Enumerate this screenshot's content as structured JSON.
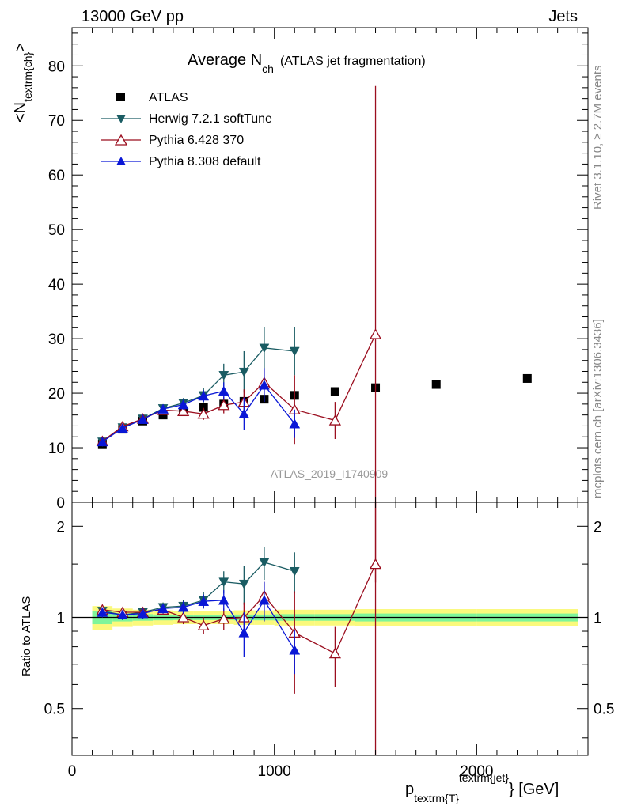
{
  "header": {
    "left": "13000 GeV pp",
    "right": "Jets"
  },
  "side": {
    "rivet": "Rivet 3.1.10, ≥ 2.7M events",
    "mcplots": "mcplots.cern.ch [arXiv:1306.3436]"
  },
  "watermark": "ATLAS_2019_I1740909",
  "colors": {
    "atlas": "#000000",
    "herwig": "#1a5c63",
    "pythia6": "#9b0e1f",
    "pythia8": "#0a17d6",
    "band_inner": "#7ef59a",
    "band_outer": "#faf97c"
  },
  "chart_data": [
    {
      "type": "scatter",
      "title_main": "Average N",
      "title_sub": "ch",
      "title_paren": "(ATLAS jet fragmentation)",
      "ylabel_main": "<N",
      "ylabel_sub": "textrm{ch}",
      "ylabel_end": ">",
      "xlim": [
        0,
        2550
      ],
      "ylim": [
        0,
        87
      ],
      "yticks": [
        "0",
        "10",
        "20",
        "30",
        "40",
        "50",
        "60",
        "70",
        "80"
      ],
      "grid": false,
      "legend_position": "top-left",
      "series": [
        {
          "name": "ATLAS",
          "marker": "square",
          "x": [
            150,
            250,
            350,
            450,
            550,
            650,
            750,
            850,
            950,
            1100,
            1300,
            1500,
            1800,
            2250
          ],
          "y": [
            10.7,
            13.4,
            14.9,
            16.0,
            16.6,
            17.4,
            18.0,
            18.5,
            18.9,
            19.6,
            20.3,
            21.0,
            21.6,
            22.7
          ]
        },
        {
          "name": "Herwig 7.2.1 softTune",
          "marker": "triangle-down",
          "x": [
            150,
            250,
            350,
            450,
            550,
            650,
            750,
            850,
            950,
            1100
          ],
          "y": [
            11.1,
            13.7,
            15.3,
            17.2,
            18.2,
            19.6,
            23.3,
            23.9,
            28.3,
            27.7
          ],
          "err": [
            0.5,
            0.6,
            0.7,
            0.8,
            0.9,
            1.3,
            2.1,
            3.8,
            3.8,
            4.4
          ]
        },
        {
          "name": "Pythia 6.428 370",
          "marker": "triangle-up-open",
          "x": [
            150,
            250,
            350,
            450,
            550,
            650,
            750,
            850,
            950,
            1100,
            1300,
            1500
          ],
          "y": [
            11.2,
            13.9,
            15.3,
            16.9,
            16.7,
            16.2,
            17.8,
            18.4,
            22.0,
            17.0,
            15.0,
            30.8
          ],
          "err": [
            0.5,
            0.6,
            0.6,
            0.7,
            0.8,
            1.1,
            1.5,
            2.3,
            2.5,
            6.3,
            3.4,
            45.5
          ]
        },
        {
          "name": "Pythia 8.308 default",
          "marker": "triangle-up",
          "x": [
            150,
            250,
            350,
            450,
            550,
            650,
            750,
            850,
            950,
            1100
          ],
          "y": [
            11.1,
            13.6,
            15.2,
            17.1,
            17.9,
            19.5,
            20.4,
            16.2,
            21.5,
            14.4
          ],
          "err": [
            0.5,
            0.6,
            0.7,
            0.8,
            0.9,
            1.1,
            1.6,
            3.0,
            3.1,
            2.6
          ]
        }
      ]
    },
    {
      "type": "scatter",
      "ylabel": "Ratio to ATLAS",
      "xlabel_main": "p",
      "xlabel_sub": "textrm{T}",
      "xlabel_sup": "textrm{jet}",
      "xlabel_end": "} [GeV]",
      "xlim": [
        0,
        2550
      ],
      "ylim": [
        0.35,
        2.4
      ],
      "ylog": true,
      "yticks": [
        "0.5",
        "1",
        "2"
      ],
      "xticks": [
        "0",
        "1000",
        "2000"
      ],
      "band_edges": [
        100,
        200,
        300,
        400,
        500,
        600,
        700,
        800,
        900,
        1000,
        1200,
        1400,
        1600,
        2000,
        2500
      ],
      "band_inner": [
        0.05,
        0.03,
        0.025,
        0.022,
        0.02,
        0.02,
        0.02,
        0.022,
        0.022,
        0.025,
        0.025,
        0.03,
        0.03,
        0.03
      ],
      "band_outer": [
        0.09,
        0.07,
        0.06,
        0.055,
        0.05,
        0.05,
        0.05,
        0.055,
        0.055,
        0.06,
        0.06,
        0.065,
        0.065,
        0.065
      ],
      "series": [
        {
          "name": "Herwig 7.2.1 softTune",
          "x": [
            150,
            250,
            350,
            450,
            550,
            650,
            750,
            850,
            950,
            1100
          ],
          "y": [
            1.05,
            1.02,
            1.04,
            1.08,
            1.09,
            1.14,
            1.31,
            1.29,
            1.52,
            1.42
          ],
          "err": [
            0.04,
            0.04,
            0.04,
            0.04,
            0.05,
            0.07,
            0.11,
            0.19,
            0.19,
            0.22
          ]
        },
        {
          "name": "Pythia 6.428 370",
          "x": [
            150,
            250,
            350,
            450,
            550,
            650,
            750,
            850,
            950,
            1100,
            1300,
            1500
          ],
          "y": [
            1.06,
            1.04,
            1.04,
            1.06,
            1.0,
            0.94,
            0.99,
            1.0,
            1.18,
            0.89,
            0.76,
            1.5
          ],
          "err": [
            0.04,
            0.04,
            0.04,
            0.04,
            0.05,
            0.06,
            0.08,
            0.12,
            0.13,
            0.33,
            0.17,
            2.2
          ]
        },
        {
          "name": "Pythia 8.308 default",
          "x": [
            150,
            250,
            350,
            450,
            550,
            650,
            750,
            850,
            950,
            1100
          ],
          "y": [
            1.04,
            1.02,
            1.03,
            1.07,
            1.08,
            1.13,
            1.14,
            0.89,
            1.14,
            0.78
          ],
          "err": [
            0.04,
            0.04,
            0.04,
            0.04,
            0.05,
            0.06,
            0.09,
            0.15,
            0.17,
            0.13
          ]
        }
      ]
    }
  ]
}
